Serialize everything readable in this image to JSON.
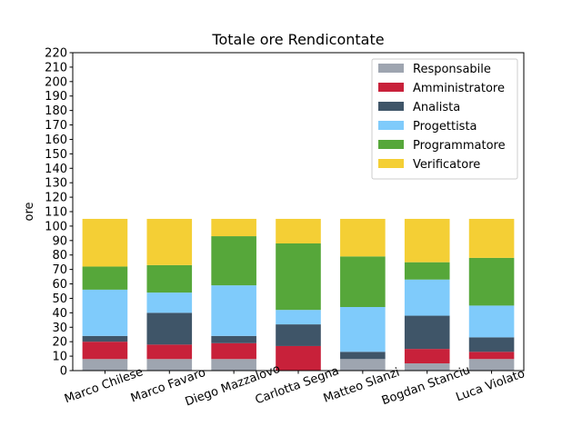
{
  "chart_data": {
    "type": "bar",
    "stacked": true,
    "title": "Totale ore Rendicontate",
    "xlabel": "",
    "ylabel": "ore",
    "ylim": [
      0,
      220
    ],
    "yticks": [
      0,
      10,
      20,
      30,
      40,
      50,
      60,
      70,
      80,
      90,
      100,
      110,
      120,
      130,
      140,
      150,
      160,
      170,
      180,
      190,
      200,
      210,
      220
    ],
    "grid": false,
    "legend_position": "top-right",
    "categories": [
      "Marco Chilese",
      "Marco Favaro",
      "Diego Mazzalovo",
      "Carlotta Segna",
      "Matteo Slanzi",
      "Bogdan Stanciu",
      "Luca Violato"
    ],
    "series": [
      {
        "name": "Responsabile",
        "color": "#9ea5b0",
        "values": [
          8,
          8,
          8,
          0,
          8,
          5,
          8
        ]
      },
      {
        "name": "Amministratore",
        "color": "#c8213a",
        "values": [
          12,
          10,
          11,
          17,
          0,
          10,
          5
        ]
      },
      {
        "name": "Analista",
        "color": "#3f5568",
        "values": [
          4,
          22,
          5,
          15,
          5,
          23,
          10
        ]
      },
      {
        "name": "Progettista",
        "color": "#7fcbfb",
        "values": [
          32,
          14,
          35,
          10,
          31,
          25,
          22
        ]
      },
      {
        "name": "Programmatore",
        "color": "#56a73a",
        "values": [
          16,
          19,
          34,
          46,
          35,
          12,
          33
        ]
      },
      {
        "name": "Verificatore",
        "color": "#f4cf35",
        "values": [
          33,
          32,
          12,
          17,
          26,
          30,
          27
        ]
      }
    ]
  }
}
